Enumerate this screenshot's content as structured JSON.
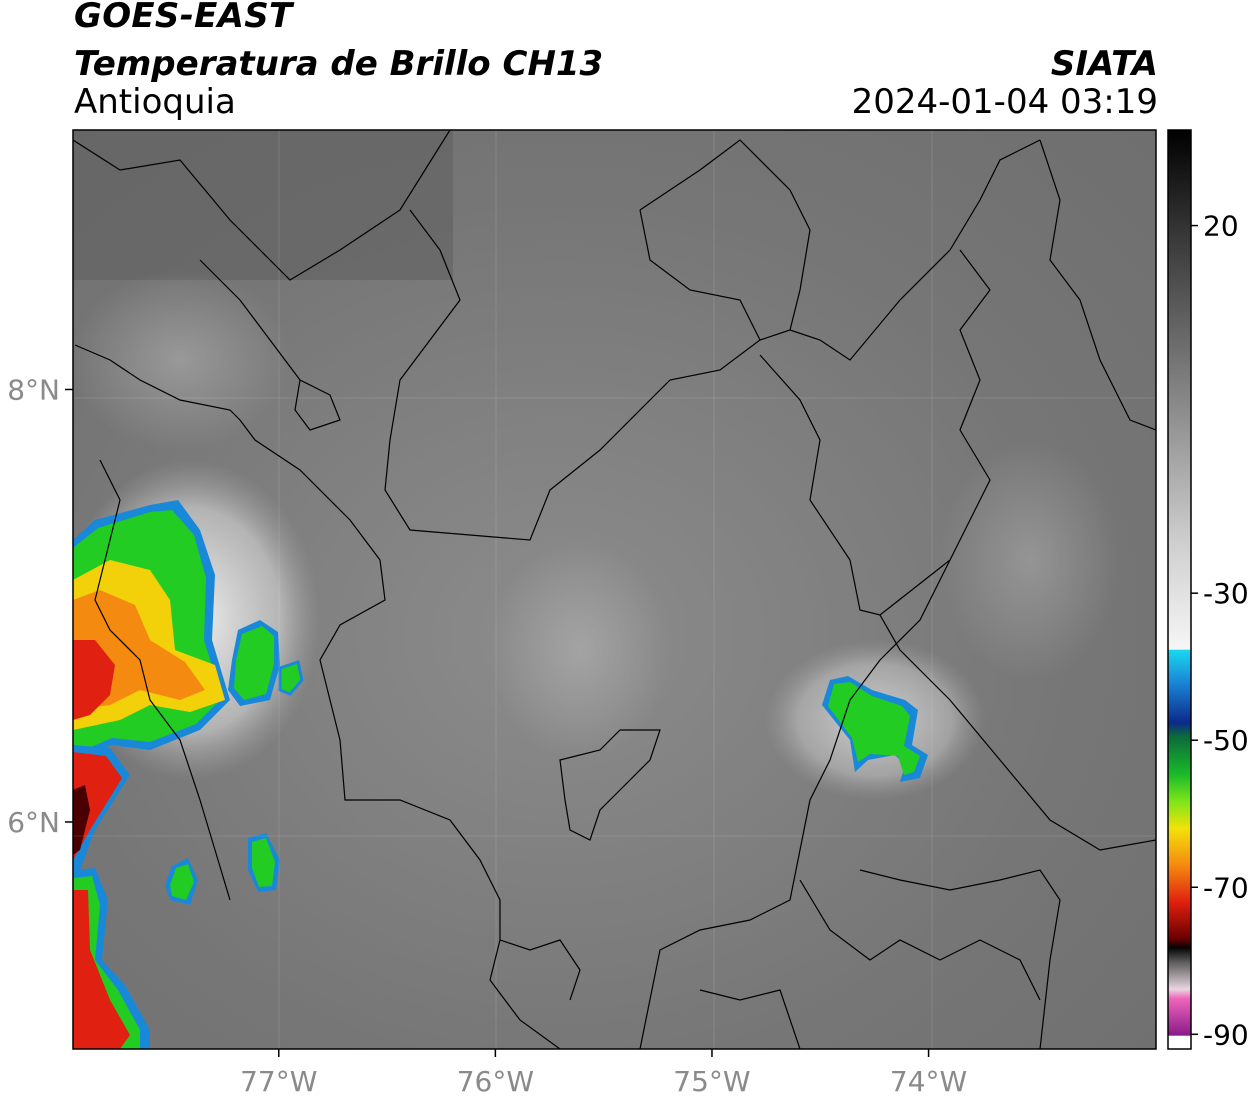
{
  "header": {
    "satellite": "GOES-EAST",
    "product": "Temperatura de Brillo CH13",
    "region": "Antioquia",
    "agency": "SIATA",
    "timestamp": "2024-01-04 03:19"
  },
  "map": {
    "lon_range": [
      -77.95,
      -72.95
    ],
    "lat_range": [
      4.95,
      9.2
    ],
    "lon_ticks": [
      {
        "value": -77,
        "label": "77°W"
      },
      {
        "value": -76,
        "label": "76°W"
      },
      {
        "value": -75,
        "label": "75°W"
      },
      {
        "value": -74,
        "label": "74°W"
      }
    ],
    "lat_ticks": [
      {
        "value": 8,
        "label": "8°N"
      },
      {
        "value": 6,
        "label": "6°N"
      }
    ]
  },
  "colorbar": {
    "range": [
      -92,
      33
    ],
    "ticks": [
      {
        "value": 20,
        "label": "20"
      },
      {
        "value": -30,
        "label": "-30"
      },
      {
        "value": -50,
        "label": "-50"
      },
      {
        "value": -70,
        "label": "-70"
      },
      {
        "value": -90,
        "label": "-90"
      }
    ]
  },
  "colors": {
    "background_gray": "#7a7a7a",
    "cold_cloud_green": "#22cc22",
    "cold_cloud_red": "#e02010"
  }
}
